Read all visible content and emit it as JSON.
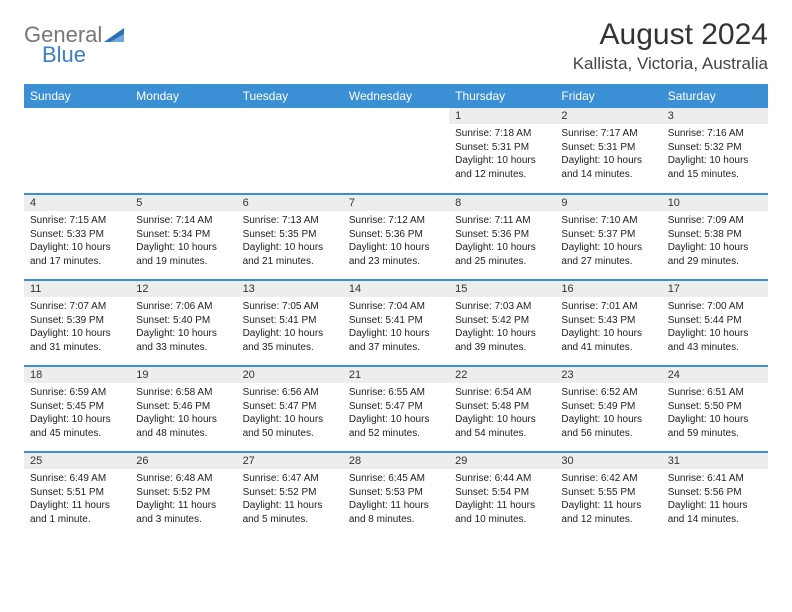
{
  "logo": {
    "line1": "General",
    "line2": "Blue"
  },
  "title": "August 2024",
  "location": "Kallista, Victoria, Australia",
  "weekdays": [
    "Sunday",
    "Monday",
    "Tuesday",
    "Wednesday",
    "Thursday",
    "Friday",
    "Saturday"
  ],
  "colors": {
    "header_bg": "#3b8fd4",
    "daynum_bg": "#ededed",
    "row_border": "#3b8fd4"
  },
  "weeks": [
    [
      {
        "empty": true
      },
      {
        "empty": true
      },
      {
        "empty": true
      },
      {
        "empty": true
      },
      {
        "day": "1",
        "sunrise": "Sunrise: 7:18 AM",
        "sunset": "Sunset: 5:31 PM",
        "daylight": "Daylight: 10 hours and 12 minutes."
      },
      {
        "day": "2",
        "sunrise": "Sunrise: 7:17 AM",
        "sunset": "Sunset: 5:31 PM",
        "daylight": "Daylight: 10 hours and 14 minutes."
      },
      {
        "day": "3",
        "sunrise": "Sunrise: 7:16 AM",
        "sunset": "Sunset: 5:32 PM",
        "daylight": "Daylight: 10 hours and 15 minutes."
      }
    ],
    [
      {
        "day": "4",
        "sunrise": "Sunrise: 7:15 AM",
        "sunset": "Sunset: 5:33 PM",
        "daylight": "Daylight: 10 hours and 17 minutes."
      },
      {
        "day": "5",
        "sunrise": "Sunrise: 7:14 AM",
        "sunset": "Sunset: 5:34 PM",
        "daylight": "Daylight: 10 hours and 19 minutes."
      },
      {
        "day": "6",
        "sunrise": "Sunrise: 7:13 AM",
        "sunset": "Sunset: 5:35 PM",
        "daylight": "Daylight: 10 hours and 21 minutes."
      },
      {
        "day": "7",
        "sunrise": "Sunrise: 7:12 AM",
        "sunset": "Sunset: 5:36 PM",
        "daylight": "Daylight: 10 hours and 23 minutes."
      },
      {
        "day": "8",
        "sunrise": "Sunrise: 7:11 AM",
        "sunset": "Sunset: 5:36 PM",
        "daylight": "Daylight: 10 hours and 25 minutes."
      },
      {
        "day": "9",
        "sunrise": "Sunrise: 7:10 AM",
        "sunset": "Sunset: 5:37 PM",
        "daylight": "Daylight: 10 hours and 27 minutes."
      },
      {
        "day": "10",
        "sunrise": "Sunrise: 7:09 AM",
        "sunset": "Sunset: 5:38 PM",
        "daylight": "Daylight: 10 hours and 29 minutes."
      }
    ],
    [
      {
        "day": "11",
        "sunrise": "Sunrise: 7:07 AM",
        "sunset": "Sunset: 5:39 PM",
        "daylight": "Daylight: 10 hours and 31 minutes."
      },
      {
        "day": "12",
        "sunrise": "Sunrise: 7:06 AM",
        "sunset": "Sunset: 5:40 PM",
        "daylight": "Daylight: 10 hours and 33 minutes."
      },
      {
        "day": "13",
        "sunrise": "Sunrise: 7:05 AM",
        "sunset": "Sunset: 5:41 PM",
        "daylight": "Daylight: 10 hours and 35 minutes."
      },
      {
        "day": "14",
        "sunrise": "Sunrise: 7:04 AM",
        "sunset": "Sunset: 5:41 PM",
        "daylight": "Daylight: 10 hours and 37 minutes."
      },
      {
        "day": "15",
        "sunrise": "Sunrise: 7:03 AM",
        "sunset": "Sunset: 5:42 PM",
        "daylight": "Daylight: 10 hours and 39 minutes."
      },
      {
        "day": "16",
        "sunrise": "Sunrise: 7:01 AM",
        "sunset": "Sunset: 5:43 PM",
        "daylight": "Daylight: 10 hours and 41 minutes."
      },
      {
        "day": "17",
        "sunrise": "Sunrise: 7:00 AM",
        "sunset": "Sunset: 5:44 PM",
        "daylight": "Daylight: 10 hours and 43 minutes."
      }
    ],
    [
      {
        "day": "18",
        "sunrise": "Sunrise: 6:59 AM",
        "sunset": "Sunset: 5:45 PM",
        "daylight": "Daylight: 10 hours and 45 minutes."
      },
      {
        "day": "19",
        "sunrise": "Sunrise: 6:58 AM",
        "sunset": "Sunset: 5:46 PM",
        "daylight": "Daylight: 10 hours and 48 minutes."
      },
      {
        "day": "20",
        "sunrise": "Sunrise: 6:56 AM",
        "sunset": "Sunset: 5:47 PM",
        "daylight": "Daylight: 10 hours and 50 minutes."
      },
      {
        "day": "21",
        "sunrise": "Sunrise: 6:55 AM",
        "sunset": "Sunset: 5:47 PM",
        "daylight": "Daylight: 10 hours and 52 minutes."
      },
      {
        "day": "22",
        "sunrise": "Sunrise: 6:54 AM",
        "sunset": "Sunset: 5:48 PM",
        "daylight": "Daylight: 10 hours and 54 minutes."
      },
      {
        "day": "23",
        "sunrise": "Sunrise: 6:52 AM",
        "sunset": "Sunset: 5:49 PM",
        "daylight": "Daylight: 10 hours and 56 minutes."
      },
      {
        "day": "24",
        "sunrise": "Sunrise: 6:51 AM",
        "sunset": "Sunset: 5:50 PM",
        "daylight": "Daylight: 10 hours and 59 minutes."
      }
    ],
    [
      {
        "day": "25",
        "sunrise": "Sunrise: 6:49 AM",
        "sunset": "Sunset: 5:51 PM",
        "daylight": "Daylight: 11 hours and 1 minute."
      },
      {
        "day": "26",
        "sunrise": "Sunrise: 6:48 AM",
        "sunset": "Sunset: 5:52 PM",
        "daylight": "Daylight: 11 hours and 3 minutes."
      },
      {
        "day": "27",
        "sunrise": "Sunrise: 6:47 AM",
        "sunset": "Sunset: 5:52 PM",
        "daylight": "Daylight: 11 hours and 5 minutes."
      },
      {
        "day": "28",
        "sunrise": "Sunrise: 6:45 AM",
        "sunset": "Sunset: 5:53 PM",
        "daylight": "Daylight: 11 hours and 8 minutes."
      },
      {
        "day": "29",
        "sunrise": "Sunrise: 6:44 AM",
        "sunset": "Sunset: 5:54 PM",
        "daylight": "Daylight: 11 hours and 10 minutes."
      },
      {
        "day": "30",
        "sunrise": "Sunrise: 6:42 AM",
        "sunset": "Sunset: 5:55 PM",
        "daylight": "Daylight: 11 hours and 12 minutes."
      },
      {
        "day": "31",
        "sunrise": "Sunrise: 6:41 AM",
        "sunset": "Sunset: 5:56 PM",
        "daylight": "Daylight: 11 hours and 14 minutes."
      }
    ]
  ]
}
